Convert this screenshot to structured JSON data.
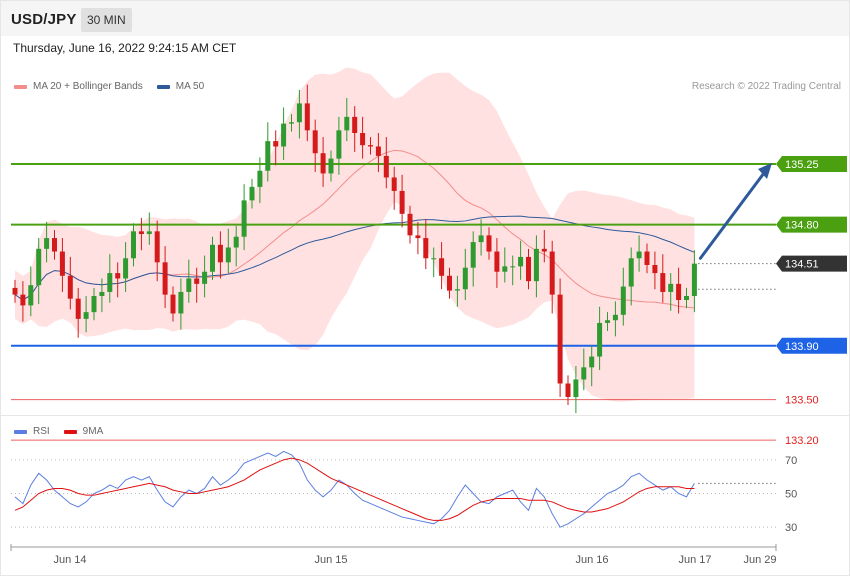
{
  "header": {
    "symbol": "USD/JPY",
    "timeframe": "30 MIN"
  },
  "date_text": "Thursday, June 16, 2022 9:24:15 AM CET",
  "credit": "Research © 2022 Trading Central",
  "legend_main": [
    {
      "label": "MA 20 + Bollinger Bands",
      "color": "#f48c8c"
    },
    {
      "label": "MA 50",
      "color": "#2e5a9c"
    }
  ],
  "legend_rsi": [
    {
      "label": "RSI",
      "color": "#5b7fe0"
    },
    {
      "label": "9MA",
      "color": "#e01010"
    }
  ],
  "colors": {
    "up": "#2f9a2f",
    "down": "#d41a1a",
    "resistance": "#4aa010",
    "support_blue": "#1e63e6",
    "support_red": "#e31e1e",
    "last": "#333333",
    "bb_fill": "#ffe1e1",
    "arrow": "#2e5a9c"
  },
  "chart_data": [
    {
      "type": "candlestick",
      "symbol": "USD/JPY",
      "timeframe": "30 MIN",
      "ylim": [
        133.0,
        136.0
      ],
      "x_ticks": [
        "Jun 14",
        "Jun 15",
        "Jun 16",
        "Jun 17",
        "Jun 29"
      ],
      "levels": [
        {
          "value": 135.25,
          "label": "135.25",
          "kind": "resistance"
        },
        {
          "value": 134.8,
          "label": "134.80",
          "kind": "resistance"
        },
        {
          "value": 134.51,
          "label": "134.51",
          "kind": "last"
        },
        {
          "value": 133.9,
          "label": "133.90",
          "kind": "support_blue"
        },
        {
          "value": 133.5,
          "label": "133.50",
          "kind": "support_red"
        },
        {
          "value": 133.2,
          "label": "133.20",
          "kind": "support_red"
        }
      ],
      "forecast_arrow": {
        "from": 134.55,
        "to": 135.25
      },
      "close": [
        134.28,
        134.2,
        134.35,
        134.62,
        134.7,
        134.6,
        134.42,
        134.25,
        134.1,
        134.15,
        134.27,
        134.3,
        134.44,
        134.4,
        134.55,
        134.75,
        134.73,
        134.75,
        134.52,
        134.28,
        134.14,
        134.3,
        134.4,
        134.36,
        134.45,
        134.65,
        134.52,
        134.63,
        134.71,
        134.98,
        135.08,
        135.2,
        135.42,
        135.38,
        135.55,
        135.56,
        135.7,
        135.5,
        135.33,
        135.18,
        135.29,
        135.5,
        135.6,
        135.48,
        135.39,
        135.38,
        135.31,
        135.15,
        135.05,
        134.88,
        134.72,
        134.7,
        134.55,
        134.55,
        134.42,
        134.31,
        134.32,
        134.48,
        134.67,
        134.72,
        134.6,
        134.45,
        134.49,
        134.49,
        134.56,
        134.38,
        134.62,
        134.6,
        134.28,
        133.62,
        133.52,
        133.65,
        133.74,
        133.82,
        134.07,
        134.09,
        134.13,
        134.34,
        134.55,
        134.6,
        134.5,
        134.44,
        134.3,
        134.36,
        134.24,
        134.27,
        134.51
      ]
    },
    {
      "type": "line",
      "title": "RSI",
      "ylim": [
        20,
        80
      ],
      "y_ticks": [
        30,
        50,
        70
      ],
      "series": [
        {
          "name": "RSI",
          "values": [
            48,
            44,
            55,
            62,
            58,
            52,
            48,
            44,
            42,
            45,
            50,
            52,
            55,
            53,
            58,
            60,
            58,
            60,
            52,
            45,
            42,
            48,
            52,
            50,
            53,
            60,
            55,
            58,
            62,
            68,
            70,
            72,
            74,
            72,
            75,
            73,
            68,
            58,
            52,
            48,
            52,
            58,
            55,
            50,
            46,
            44,
            42,
            40,
            38,
            36,
            35,
            34,
            33,
            32,
            35,
            40,
            48,
            55,
            50,
            45,
            44,
            48,
            50,
            52,
            45,
            40,
            53,
            48,
            38,
            30,
            32,
            35,
            38,
            42,
            46,
            50,
            52,
            55,
            60,
            62,
            58,
            55,
            52,
            54,
            50,
            48,
            56
          ]
        },
        {
          "name": "9MA",
          "values": [
            40,
            42,
            46,
            50,
            52,
            53,
            53,
            52,
            50,
            49,
            49,
            50,
            51,
            52,
            53,
            54,
            55,
            56,
            55,
            54,
            52,
            51,
            50,
            50,
            51,
            52,
            53,
            54,
            56,
            58,
            61,
            64,
            66,
            68,
            70,
            71,
            70,
            68,
            65,
            62,
            59,
            57,
            55,
            53,
            51,
            49,
            47,
            45,
            43,
            41,
            39,
            37,
            35,
            34,
            34,
            35,
            37,
            40,
            43,
            45,
            46,
            47,
            47,
            47,
            47,
            46,
            46,
            46,
            45,
            43,
            41,
            40,
            39,
            39,
            40,
            41,
            43,
            45,
            48,
            51,
            53,
            54,
            54,
            54,
            54,
            53,
            53
          ]
        }
      ]
    }
  ]
}
